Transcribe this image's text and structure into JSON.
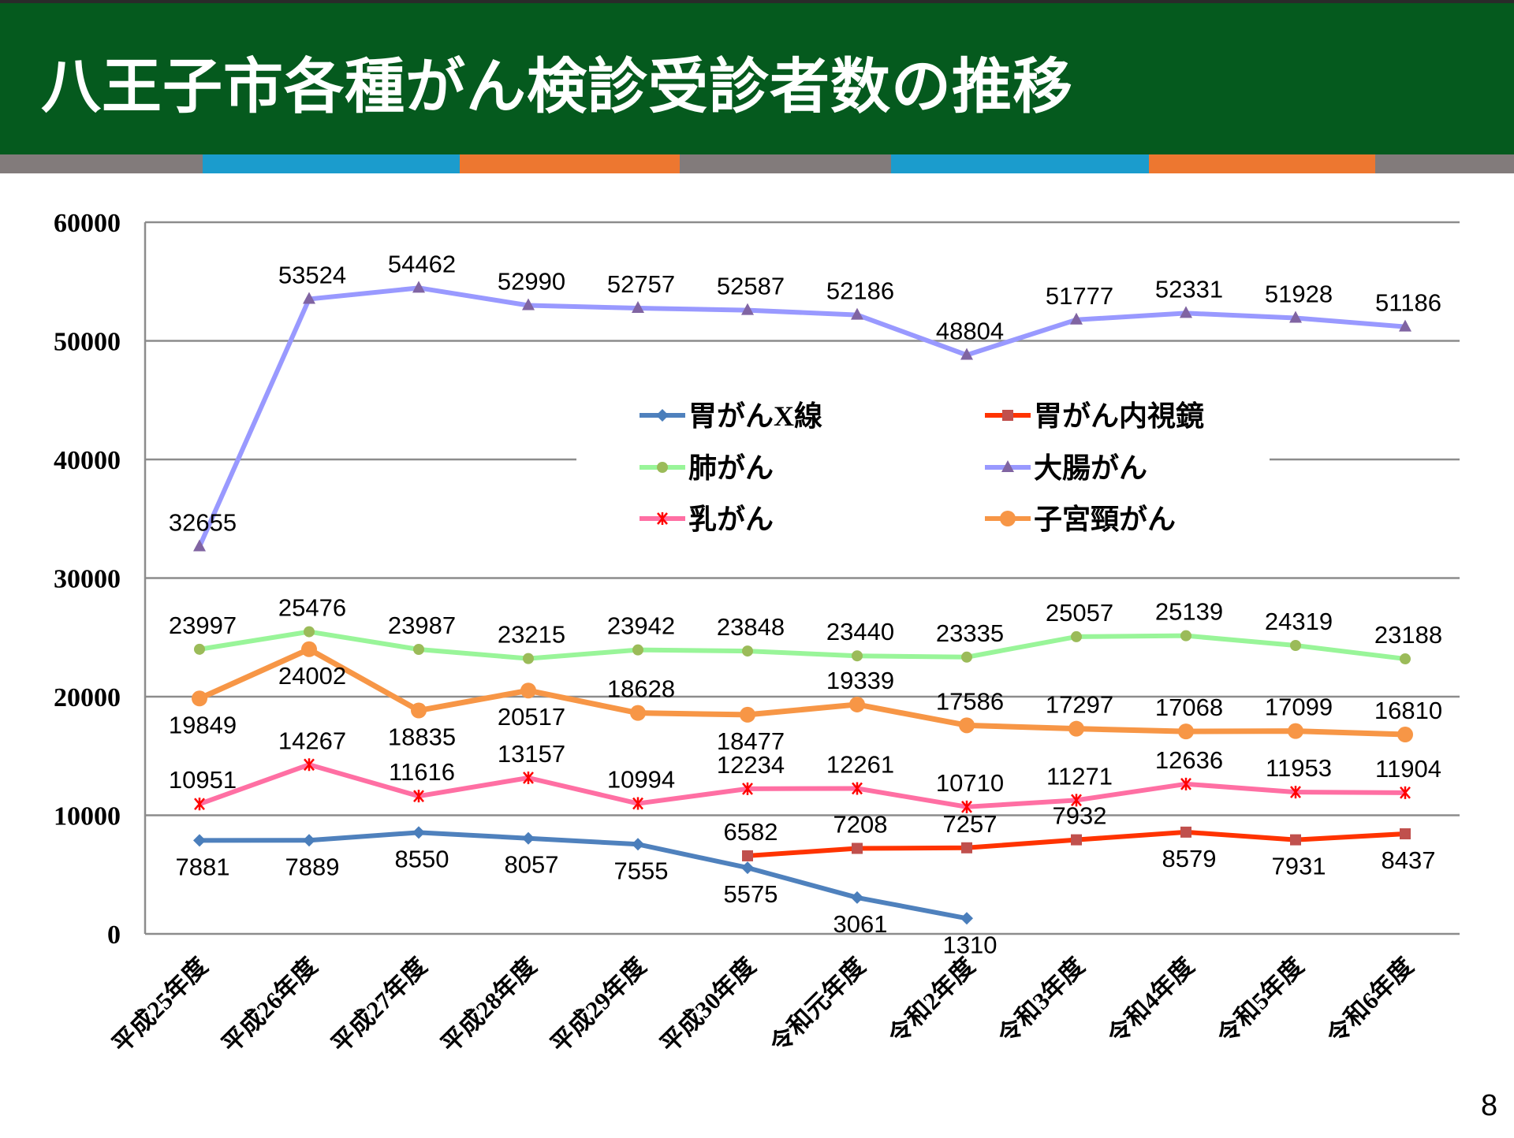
{
  "slide": {
    "title": "八王子市各種がん検診受診者数の推移",
    "page_number": "8",
    "stripe_colors": [
      "#827b7b",
      "#1b9ccd",
      "#ed7730",
      "#827b7b",
      "#1b9ccd",
      "#ed7730",
      "#827b7b"
    ]
  },
  "chart_data": {
    "type": "line",
    "title": "八王子市各種がん検診受診者数の推移",
    "xlabel": "",
    "ylabel": "",
    "ylim": [
      0,
      60000
    ],
    "yticks": [
      0,
      10000,
      20000,
      30000,
      40000,
      50000,
      60000
    ],
    "ytick_labels": [
      "0",
      "10000",
      "20000",
      "30000",
      "40000",
      "50000",
      "60000"
    ],
    "grid": true,
    "legend_position": "center",
    "categories": [
      "平成25年度",
      "平成26年度",
      "平成27年度",
      "平成28年度",
      "平成29年度",
      "平成30年度",
      "令和元年度",
      "令和2年度",
      "令和3年度",
      "令和4年度",
      "令和5年度",
      "令和6年度"
    ],
    "series": [
      {
        "name": "胃がんX線",
        "color": "#4f81bd",
        "marker_color": "#4a7ebb",
        "marker": "diamond",
        "values": [
          7881,
          7889,
          8550,
          8057,
          7555,
          5575,
          3061,
          1310,
          null,
          null,
          null,
          null
        ]
      },
      {
        "name": "胃がん内視鏡",
        "color": "#ff3300",
        "marker_color": "#c0504d",
        "marker": "square",
        "values": [
          null,
          null,
          null,
          null,
          null,
          6582,
          7208,
          7257,
          7932,
          8579,
          7931,
          8437
        ]
      },
      {
        "name": "肺がん",
        "color": "#99f599",
        "marker_color": "#9bbb59",
        "marker": "circle",
        "values": [
          23997,
          25476,
          23987,
          23215,
          23942,
          23848,
          23440,
          23335,
          25057,
          25139,
          24319,
          23188
        ]
      },
      {
        "name": "大腸がん",
        "color": "#9999ff",
        "marker_color": "#8064a2",
        "marker": "triangle",
        "values": [
          32655,
          53524,
          54462,
          52990,
          52757,
          52587,
          52186,
          48804,
          51777,
          52331,
          51928,
          51186
        ]
      },
      {
        "name": "乳がん",
        "color": "#ff6fa3",
        "marker_color": "#ff0000",
        "marker": "asterisk",
        "values": [
          10951,
          14267,
          11616,
          13157,
          10994,
          12234,
          12261,
          10710,
          11271,
          12636,
          11953,
          11904
        ]
      },
      {
        "name": "子宮頸がん",
        "color": "#f79646",
        "marker_color": "#f79646",
        "marker": "big-circle",
        "values": [
          19849,
          24002,
          18835,
          20517,
          18628,
          18477,
          19339,
          17586,
          17297,
          17068,
          17099,
          16810
        ]
      }
    ]
  }
}
